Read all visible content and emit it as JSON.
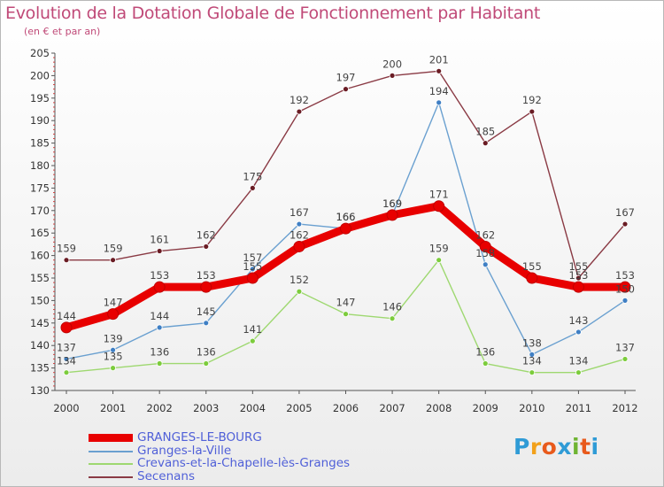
{
  "header": {
    "title": "Evolution de la Dotation Globale de Fonctionnement par Habitant",
    "subtitle": "(en € et par an)"
  },
  "logo": {
    "text": "Proxiti",
    "colors": [
      "#2f9bd6",
      "#f2a11b",
      "#e85a1c",
      "#2f9bd6",
      "#6fb432",
      "#e85a1c",
      "#2f9bd6"
    ]
  },
  "chart_data": {
    "type": "line",
    "x": [
      "2000",
      "2001",
      "2002",
      "2003",
      "2004",
      "2005",
      "2006",
      "2007",
      "2008",
      "2009",
      "2010",
      "2011",
      "2012"
    ],
    "ylim": [
      130,
      205
    ],
    "yticks": [
      "130",
      "135",
      "140",
      "145",
      "150",
      "155",
      "160",
      "165",
      "170",
      "175",
      "180",
      "185",
      "190",
      "195",
      "200",
      "205"
    ],
    "grid": false,
    "legend_position": "bottom-left",
    "series": [
      {
        "name": "GRANGES-LE-BOURG",
        "color": "#e80000",
        "marker": "#e80000",
        "thick": true,
        "values": [
          144,
          147,
          153,
          153,
          155,
          162,
          166,
          169,
          171,
          162,
          155,
          153,
          153
        ],
        "labels": [
          "144",
          "147",
          "153",
          "153",
          "155",
          "162",
          "166",
          "169",
          "171",
          "162",
          "155",
          "153",
          "153"
        ]
      },
      {
        "name": "Granges-la-Ville",
        "color": "#6aa0d0",
        "marker": "#3f7fc4",
        "thick": false,
        "values": [
          137,
          139,
          144,
          145,
          157,
          167,
          166,
          169,
          194,
          158,
          138,
          143,
          150
        ],
        "labels": [
          "137",
          "139",
          "144",
          "145",
          "157",
          "167",
          "166",
          "169",
          "194",
          "158",
          "138",
          "143",
          "150"
        ]
      },
      {
        "name": "Crevans-et-la-Chapelle-lès-Granges",
        "color": "#9ed870",
        "marker": "#7ccc3c",
        "thick": false,
        "values": [
          134,
          135,
          136,
          136,
          141,
          152,
          147,
          146,
          159,
          136,
          134,
          134,
          137
        ],
        "labels": [
          "134",
          "135",
          "136",
          "136",
          "141",
          "152",
          "147",
          "146",
          "159",
          "136",
          "134",
          "134",
          "137"
        ]
      },
      {
        "name": "Secenans",
        "color": "#8a3a44",
        "marker": "#6a1c24",
        "thick": false,
        "values": [
          159,
          159,
          161,
          162,
          175,
          192,
          197,
          200,
          201,
          185,
          192,
          155,
          167
        ],
        "labels": [
          "159",
          "159",
          "161",
          "162",
          "175",
          "192",
          "197",
          "200",
          "201",
          "185",
          "192",
          "155",
          "167"
        ]
      }
    ]
  }
}
